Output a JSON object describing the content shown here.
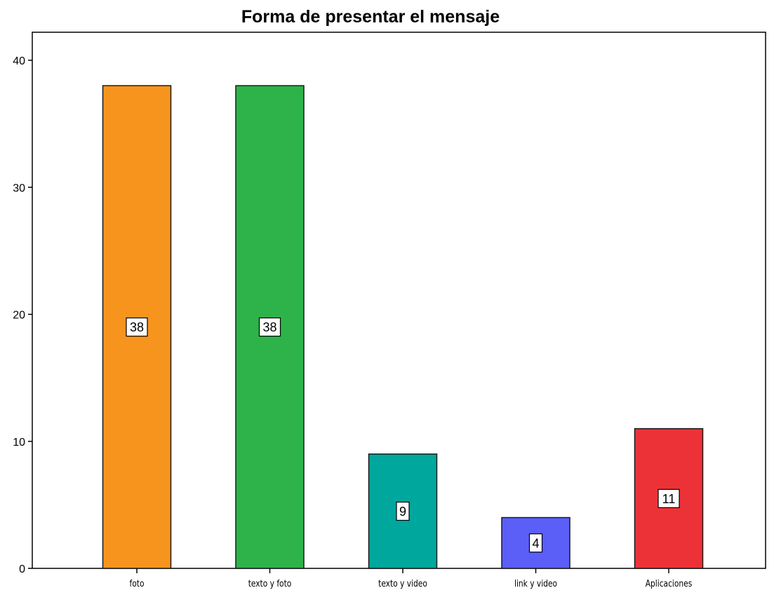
{
  "chart_data": {
    "type": "bar",
    "title": "Forma de presentar el mensaje",
    "xlabel": "",
    "ylabel": "",
    "ylim": [
      0,
      42
    ],
    "yticks": [
      0,
      10,
      20,
      30,
      40
    ],
    "grid": false,
    "categories": [
      "foto",
      "texto y foto",
      "texto y video",
      "link y video",
      "Aplicaciones"
    ],
    "values": [
      38,
      38,
      9,
      4,
      11
    ],
    "data_labels": [
      "38",
      "38",
      "9",
      "4",
      "11"
    ],
    "colors": [
      "#f7941d",
      "#2db34a",
      "#00a79d",
      "#5b5ef7",
      "#ed3237"
    ]
  }
}
